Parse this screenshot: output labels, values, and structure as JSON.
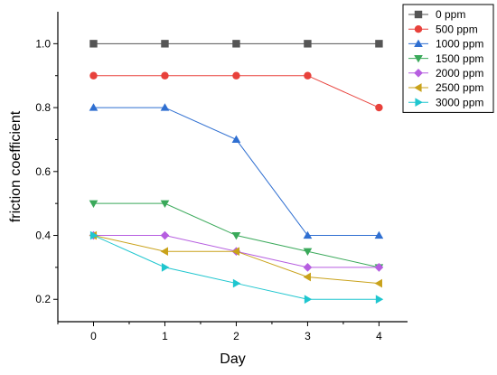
{
  "chart_data": {
    "type": "line",
    "title": "",
    "xlabel": "Day",
    "ylabel": "friction coefficient",
    "x": [
      0,
      1,
      2,
      3,
      4
    ],
    "xlim": [
      -0.5,
      4.4
    ],
    "ylim": [
      0.13,
      1.1
    ],
    "x_ticks": [
      "0",
      "1",
      "2",
      "3",
      "4"
    ],
    "y_ticks": [
      "0.2",
      "0.4",
      "0.6",
      "0.8",
      "1.0"
    ],
    "y_tick_values": [
      0.2,
      0.4,
      0.6,
      0.8,
      1.0
    ],
    "grid": false,
    "legend_position": "top-right",
    "series": [
      {
        "name": "0 ppm",
        "values": [
          1.0,
          1.0,
          1.0,
          1.0,
          1.0
        ],
        "color": "#555555",
        "marker": "square"
      },
      {
        "name": "500 ppm",
        "values": [
          0.9,
          0.9,
          0.9,
          0.9,
          0.8
        ],
        "color": "#e8413b",
        "marker": "circle"
      },
      {
        "name": "1000 ppm",
        "values": [
          0.8,
          0.8,
          0.7,
          0.4,
          0.4
        ],
        "color": "#2f6fd1",
        "marker": "triangle-up"
      },
      {
        "name": "1500 ppm",
        "values": [
          0.5,
          0.5,
          0.4,
          0.35,
          0.3
        ],
        "color": "#3aa95a",
        "marker": "triangle-down"
      },
      {
        "name": "2000 ppm",
        "values": [
          0.4,
          0.4,
          0.35,
          0.3,
          0.3
        ],
        "color": "#b65ee0",
        "marker": "diamond"
      },
      {
        "name": "2500 ppm",
        "values": [
          0.4,
          0.35,
          0.35,
          0.27,
          0.25
        ],
        "color": "#c9a21a",
        "marker": "triangle-left"
      },
      {
        "name": "3000 ppm",
        "values": [
          0.4,
          0.3,
          0.25,
          0.2,
          0.2
        ],
        "color": "#1fc6cf",
        "marker": "triangle-right"
      }
    ]
  }
}
